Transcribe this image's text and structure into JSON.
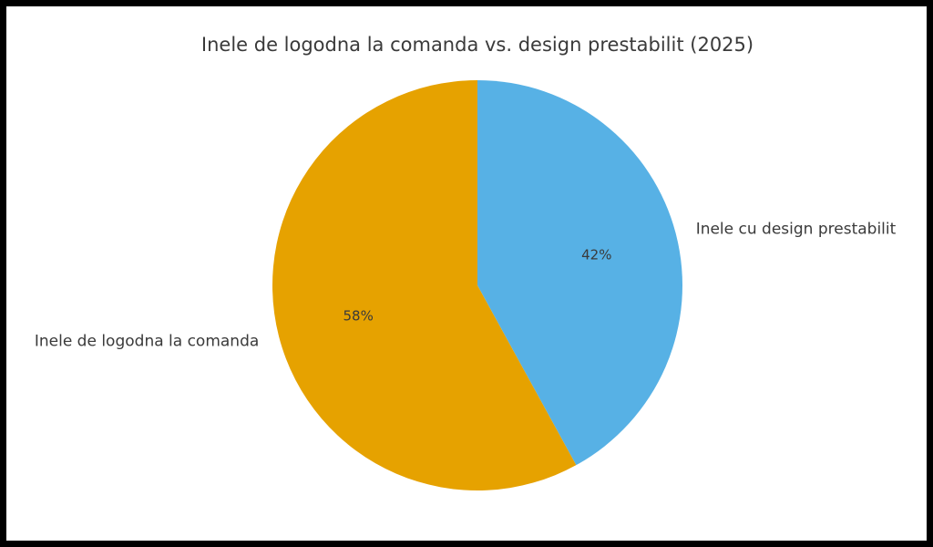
{
  "frame": {
    "border_color": "#000000",
    "background_color": "#ffffff"
  },
  "chart_data": {
    "type": "pie",
    "title": "Inele de logodna la comanda vs. design prestabilit (2025)",
    "labels": [
      "Inele cu design prestabilit",
      "Inele de logodna la comanda"
    ],
    "values": [
      42,
      58
    ],
    "pct_labels": [
      "42%",
      "58%"
    ],
    "colors": [
      "#57b1e5",
      "#e6a200"
    ],
    "layout": {
      "start_angle": 90,
      "direction": "clockwise",
      "label_distance": 1.1,
      "pct_distance": 0.6,
      "legend": "none",
      "grid": "off",
      "text_color": "#3a3a3a",
      "title_color": "#3a3a3a"
    }
  }
}
